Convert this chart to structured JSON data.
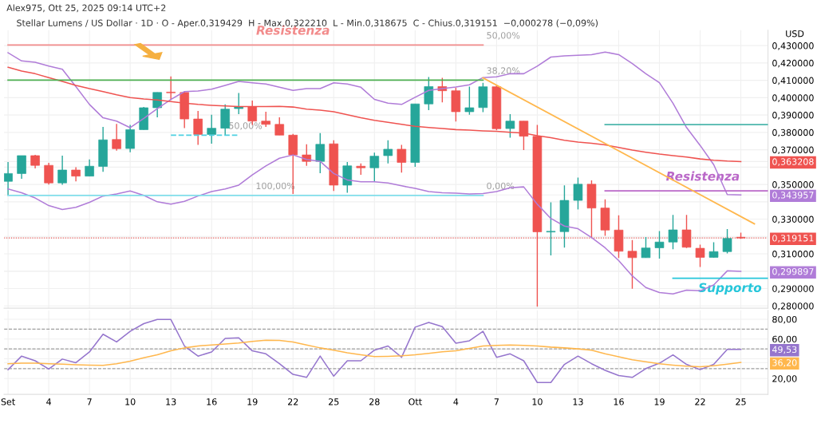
{
  "chart_data": [
    {
      "type": "candlestick",
      "subtitle": "Alex975, Ott 25, 2025 09:14 UTC+2",
      "title": "Stellar Lumens / US Dollar · 1D · O - Aper.0,319429  H - Max.0,322210  L - Min.0,318675  C - Chius.0,319151  −0,000278 (−0,09%)",
      "ylabel": "USD",
      "x": [
        "2025-09-01",
        "2025-09-02",
        "2025-09-03",
        "2025-09-04",
        "2025-09-05",
        "2025-09-06",
        "2025-09-07",
        "2025-09-08",
        "2025-09-09",
        "2025-09-10",
        "2025-09-11",
        "2025-09-12",
        "2025-09-13",
        "2025-09-14",
        "2025-09-15",
        "2025-09-16",
        "2025-09-17",
        "2025-09-18",
        "2025-09-19",
        "2025-09-20",
        "2025-09-21",
        "2025-09-22",
        "2025-09-23",
        "2025-09-24",
        "2025-09-25",
        "2025-09-26",
        "2025-09-27",
        "2025-09-28",
        "2025-09-29",
        "2025-09-30",
        "2025-10-01",
        "2025-10-02",
        "2025-10-03",
        "2025-10-04",
        "2025-10-05",
        "2025-10-06",
        "2025-10-07",
        "2025-10-08",
        "2025-10-09",
        "2025-10-10",
        "2025-10-11",
        "2025-10-12",
        "2025-10-13",
        "2025-10-14",
        "2025-10-15",
        "2025-10-16",
        "2025-10-17",
        "2025-10-18",
        "2025-10-19",
        "2025-10-20",
        "2025-10-21",
        "2025-10-22",
        "2025-10-23",
        "2025-10-24",
        "2025-10-25"
      ],
      "ohlc": [
        [
          0.3518,
          0.3629,
          0.3437,
          0.3563
        ],
        [
          0.3563,
          0.3666,
          0.3533,
          0.3666
        ],
        [
          0.3666,
          0.367,
          0.3592,
          0.361
        ],
        [
          0.361,
          0.3625,
          0.3499,
          0.3509
        ],
        [
          0.3509,
          0.3666,
          0.3498,
          0.3583
        ],
        [
          0.3583,
          0.3599,
          0.3518,
          0.3548
        ],
        [
          0.3548,
          0.3644,
          0.3548,
          0.3605
        ],
        [
          0.3604,
          0.3831,
          0.3573,
          0.3757
        ],
        [
          0.3759,
          0.3849,
          0.3695,
          0.3706
        ],
        [
          0.3707,
          0.3843,
          0.3685,
          0.3816
        ],
        [
          0.3816,
          0.3946,
          0.3816,
          0.3942
        ],
        [
          0.3942,
          0.403,
          0.3887,
          0.403
        ],
        [
          0.4032,
          0.4123,
          0.3987,
          0.4028
        ],
        [
          0.403,
          0.4034,
          0.3825,
          0.3877
        ],
        [
          0.3877,
          0.3924,
          0.3728,
          0.3788
        ],
        [
          0.3788,
          0.3902,
          0.3735,
          0.3824
        ],
        [
          0.3824,
          0.3961,
          0.3784,
          0.3934
        ],
        [
          0.3937,
          0.4027,
          0.3905,
          0.3946
        ],
        [
          0.3946,
          0.3983,
          0.3843,
          0.3865
        ],
        [
          0.3865,
          0.3919,
          0.3831,
          0.3846
        ],
        [
          0.3846,
          0.3887,
          0.3784,
          0.3784
        ],
        [
          0.3784,
          0.3791,
          0.3445,
          0.367
        ],
        [
          0.367,
          0.3732,
          0.3607,
          0.3633
        ],
        [
          0.3633,
          0.3796,
          0.3565,
          0.3731
        ],
        [
          0.3734,
          0.3754,
          0.3462,
          0.3496
        ],
        [
          0.3496,
          0.3629,
          0.3452,
          0.3607
        ],
        [
          0.3605,
          0.3621,
          0.3555,
          0.3596
        ],
        [
          0.3596,
          0.3683,
          0.3515,
          0.3663
        ],
        [
          0.3666,
          0.3754,
          0.3621,
          0.3703
        ],
        [
          0.3703,
          0.3728,
          0.3568,
          0.3627
        ],
        [
          0.3627,
          0.3964,
          0.3602,
          0.3964
        ],
        [
          0.3964,
          0.4119,
          0.3928,
          0.4064
        ],
        [
          0.4064,
          0.4114,
          0.3973,
          0.404
        ],
        [
          0.404,
          0.4057,
          0.3863,
          0.3919
        ],
        [
          0.3919,
          0.4064,
          0.3902,
          0.3942
        ],
        [
          0.3943,
          0.4086,
          0.3917,
          0.4063
        ],
        [
          0.4063,
          0.4074,
          0.3813,
          0.3821
        ],
        [
          0.3822,
          0.3905,
          0.3769,
          0.3865
        ],
        [
          0.3865,
          0.3865,
          0.3698,
          0.3778
        ],
        [
          0.3777,
          0.3843,
          0.2796,
          0.3227
        ],
        [
          0.3226,
          0.3397,
          0.3091,
          0.3228
        ],
        [
          0.3228,
          0.3495,
          0.3136,
          0.3408
        ],
        [
          0.3408,
          0.354,
          0.3356,
          0.3501
        ],
        [
          0.3501,
          0.3523,
          0.3194,
          0.3364
        ],
        [
          0.3364,
          0.3414,
          0.3204,
          0.3237
        ],
        [
          0.3237,
          0.3322,
          0.3076,
          0.3115
        ],
        [
          0.3115,
          0.3179,
          0.2899,
          0.3078
        ],
        [
          0.3078,
          0.3197,
          0.3078,
          0.3134
        ],
        [
          0.3135,
          0.3231,
          0.3073,
          0.3168
        ],
        [
          0.3168,
          0.3324,
          0.3127,
          0.3238
        ],
        [
          0.3238,
          0.3324,
          0.3134,
          0.3138
        ],
        [
          0.3132,
          0.3153,
          0.3024,
          0.308
        ],
        [
          0.308,
          0.3167,
          0.3078,
          0.3113
        ],
        [
          0.3113,
          0.3243,
          0.3102,
          0.3189
        ],
        [
          0.319429,
          0.32221,
          0.318675,
          0.319151
        ]
      ],
      "colors": [
        "#26a69a",
        "#26a69a",
        "#ef5350",
        "#ef5350",
        "#26a69a",
        "#ef5350",
        "#26a69a",
        "#26a69a",
        "#ef5350",
        "#26a69a",
        "#26a69a",
        "#26a69a",
        "#ef5350",
        "#ef5350",
        "#ef5350",
        "#26a69a",
        "#26a69a",
        "#26a69a",
        "#ef5350",
        "#ef5350",
        "#ef5350",
        "#ef5350",
        "#ef5350",
        "#26a69a",
        "#ef5350",
        "#26a69a",
        "#ef5350",
        "#26a69a",
        "#26a69a",
        "#ef5350",
        "#26a69a",
        "#26a69a",
        "#ef5350",
        "#ef5350",
        "#26a69a",
        "#26a69a",
        "#ef5350",
        "#26a69a",
        "#ef5350",
        "#ef5350",
        "#26a69a",
        "#26a69a",
        "#26a69a",
        "#ef5350",
        "#ef5350",
        "#ef5350",
        "#ef5350",
        "#26a69a",
        "#26a69a",
        "#26a69a",
        "#ef5350",
        "#ef5350",
        "#26a69a",
        "#26a69a",
        "#ef5350"
      ],
      "series": [
        {
          "type": "line",
          "color": "#b07cd8",
          "values": [
            0.4259,
            0.4212,
            0.4204,
            0.4182,
            0.4164,
            0.4064,
            0.3961,
            0.3884,
            0.3865,
            0.3827,
            0.388,
            0.3937,
            0.399,
            0.4035,
            0.4039,
            0.4049,
            0.4071,
            0.4094,
            0.4086,
            0.4079,
            0.406,
            0.4042,
            0.4052,
            0.4052,
            0.4086,
            0.4079,
            0.406,
            0.399,
            0.3968,
            0.3961,
            0.4002,
            0.4042,
            0.4052,
            0.4061,
            0.4074,
            0.4116,
            0.412,
            0.4138,
            0.4138,
            0.4182,
            0.4234,
            0.4241,
            0.4244,
            0.4248,
            0.4263,
            0.4248,
            0.4197,
            0.4138,
            0.4086,
            0.3968,
            0.3828,
            0.3725,
            0.3614,
            0.3442,
            0.344
          ]
        },
        {
          "type": "line",
          "color": "#b07cd8",
          "values": [
            0.3474,
            0.3452,
            0.3422,
            0.3378,
            0.3356,
            0.3368,
            0.3397,
            0.3433,
            0.3445,
            0.3462,
            0.3437,
            0.34,
            0.3386,
            0.3403,
            0.3433,
            0.3459,
            0.3474,
            0.3496,
            0.3555,
            0.3607,
            0.3651,
            0.367,
            0.3644,
            0.3633,
            0.3563,
            0.3526,
            0.3515,
            0.3515,
            0.3508,
            0.3492,
            0.3477,
            0.3459,
            0.3452,
            0.345,
            0.3445,
            0.3447,
            0.3459,
            0.3481,
            0.3486,
            0.3386,
            0.3304,
            0.326,
            0.3245,
            0.3194,
            0.3135,
            0.3061,
            0.2973,
            0.2906,
            0.2877,
            0.2869,
            0.2891,
            0.2887,
            0.2921,
            0.3002,
            0.2999
          ]
        },
        {
          "type": "line",
          "color": "#ef5350",
          "values": [
            0.4175,
            0.4153,
            0.4138,
            0.4116,
            0.4094,
            0.4071,
            0.4052,
            0.4035,
            0.4017,
            0.4001,
            0.3993,
            0.3987,
            0.3978,
            0.3968,
            0.3961,
            0.3956,
            0.3952,
            0.3949,
            0.3949,
            0.3949,
            0.395,
            0.3946,
            0.3934,
            0.3928,
            0.3919,
            0.3902,
            0.3884,
            0.3869,
            0.3858,
            0.3846,
            0.3835,
            0.3828,
            0.3822,
            0.3816,
            0.3813,
            0.3809,
            0.3806,
            0.3801,
            0.3796,
            0.3781,
            0.3769,
            0.3754,
            0.3744,
            0.3737,
            0.3728,
            0.3713,
            0.3698,
            0.3686,
            0.3675,
            0.3666,
            0.3658,
            0.3647,
            0.364,
            0.3635,
            0.3632
          ]
        },
        {
          "type": "line",
          "name": "Resistenza",
          "color": "#f28b8b",
          "x": [
            "2025-09-01",
            "2025-10-06"
          ],
          "values": [
            0.4304,
            0.4304
          ]
        },
        {
          "type": "line",
          "color": "#4caf50",
          "x": [
            "2025-09-01",
            "2025-10-06"
          ],
          "values": [
            0.4101,
            0.4101
          ]
        },
        {
          "type": "line",
          "color": "#80deea",
          "x": [
            "2025-09-01",
            "2025-10-06"
          ],
          "values": [
            0.3437,
            0.3437
          ]
        },
        {
          "type": "line",
          "color": "#4dd0e1",
          "line_style": "dashed",
          "x": [
            "2025-09-13",
            "2025-09-18"
          ],
          "values": [
            0.3784,
            0.3784
          ]
        },
        {
          "type": "line",
          "color": "#4db6ac",
          "x": [
            "2025-10-15",
            "2025-10-27"
          ],
          "values": [
            0.3845,
            0.3845
          ]
        },
        {
          "type": "line",
          "name": "Resistenza",
          "color": "#ba68c8",
          "x": [
            "2025-10-15",
            "2025-10-27"
          ],
          "values": [
            0.3463,
            0.3463
          ]
        },
        {
          "type": "line",
          "name": "Supporto",
          "color": "#26c6da",
          "x": [
            "2025-10-20",
            "2025-10-27"
          ],
          "values": [
            0.2959,
            0.2959
          ]
        },
        {
          "type": "line",
          "color": "#ffb74d",
          "x": [
            "2025-10-06",
            "2025-10-26"
          ],
          "values": [
            0.4114,
            0.3273
          ]
        }
      ],
      "ref_lines": [
        {
          "axis": "y",
          "value": 0.319151,
          "color": "#ef5350",
          "line_style": "dotted"
        }
      ],
      "annotations": [
        {
          "text": "50,00%",
          "x": "2025-10-06",
          "y": 0.4304
        },
        {
          "text": "38,20%",
          "x": "2025-10-06",
          "y": 0.4101
        },
        {
          "text": "50,00%",
          "x": "2025-09-17",
          "y": 0.3784
        },
        {
          "text": "100,00%",
          "x": "2025-09-19",
          "y": 0.3437
        },
        {
          "text": "0,00%",
          "x": "2025-10-06",
          "y": 0.3437
        }
      ],
      "xlim": [
        "2025-08-31T17:00",
        "2025-10-27"
      ],
      "xticks": [
        {
          "value": "2025-09-01",
          "label": null
        },
        {
          "value": "2025-09-04",
          "label": null
        },
        {
          "value": "2025-09-07",
          "label": null
        },
        {
          "value": "2025-09-10",
          "label": null
        },
        {
          "value": "2025-09-13",
          "label": null
        },
        {
          "value": "2025-09-16",
          "label": null
        },
        {
          "value": "2025-09-19",
          "label": null
        },
        {
          "value": "2025-09-22",
          "label": null
        },
        {
          "value": "2025-09-25",
          "label": null
        },
        {
          "value": "2025-09-28",
          "label": null
        },
        {
          "value": "2025-10-01",
          "label": null
        },
        {
          "value": "2025-10-04",
          "label": null
        },
        {
          "value": "2025-10-07",
          "label": null
        },
        {
          "value": "2025-10-10",
          "label": null
        },
        {
          "value": "2025-10-13",
          "label": null
        },
        {
          "value": "2025-10-16",
          "label": null
        },
        {
          "value": "2025-10-19",
          "label": null
        },
        {
          "value": "2025-10-22",
          "label": null
        },
        {
          "value": "2025-10-25",
          "label": null
        }
      ],
      "ylim": [
        0.2787,
        0.4389
      ],
      "yticks": [
        {
          "value": 0.28,
          "label": "0,280000"
        },
        {
          "value": 0.29,
          "label": "0,290000"
        },
        {
          "value": 0.3,
          "label": null
        },
        {
          "value": 0.31,
          "label": "0,310000"
        },
        {
          "value": 0.32,
          "label": null
        },
        {
          "value": 0.33,
          "label": "0,330000"
        },
        {
          "value": 0.34,
          "label": null
        },
        {
          "value": 0.35,
          "label": "0,350000"
        },
        {
          "value": 0.36,
          "label": null
        },
        {
          "value": 0.37,
          "label": "0,370000"
        },
        {
          "value": 0.38,
          "label": "0,380000"
        },
        {
          "value": 0.39,
          "label": "0,390000"
        },
        {
          "value": 0.4,
          "label": "0,400000"
        },
        {
          "value": 0.41,
          "label": "0,410000"
        },
        {
          "value": 0.42,
          "label": "0,420000"
        },
        {
          "value": 0.43,
          "label": "0,430000"
        },
        {
          "value": 0.363208,
          "label": "0,363208"
        },
        {
          "value": 0.343957,
          "label": "0,343957"
        },
        {
          "value": 0.319151,
          "label": "0,319151"
        },
        {
          "value": 0.299897,
          "label": "0,299897"
        }
      ],
      "tick_labels": "y",
      "grid": true
    },
    {
      "type": "line",
      "x": [
        "2025-09-01",
        "2025-09-02",
        "2025-09-03",
        "2025-09-04",
        "2025-09-05",
        "2025-09-06",
        "2025-09-07",
        "2025-09-08",
        "2025-09-09",
        "2025-09-10",
        "2025-09-11",
        "2025-09-12",
        "2025-09-13",
        "2025-09-14",
        "2025-09-15",
        "2025-09-16",
        "2025-09-17",
        "2025-09-18",
        "2025-09-19",
        "2025-09-20",
        "2025-09-21",
        "2025-09-22",
        "2025-09-23",
        "2025-09-24",
        "2025-09-25",
        "2025-09-26",
        "2025-09-27",
        "2025-09-28",
        "2025-09-29",
        "2025-09-30",
        "2025-10-01",
        "2025-10-02",
        "2025-10-03",
        "2025-10-04",
        "2025-10-05",
        "2025-10-06",
        "2025-10-07",
        "2025-10-08",
        "2025-10-09",
        "2025-10-10",
        "2025-10-11",
        "2025-10-12",
        "2025-10-13",
        "2025-10-14",
        "2025-10-15",
        "2025-10-16",
        "2025-10-17",
        "2025-10-18",
        "2025-10-19",
        "2025-10-20",
        "2025-10-21",
        "2025-10-22",
        "2025-10-23",
        "2025-10-24",
        "2025-10-25"
      ],
      "series": [
        {
          "color": "#9575cd",
          "values": [
            29,
            42.7,
            38,
            29.6,
            39.7,
            36,
            46.9,
            64.8,
            57,
            67.8,
            75.5,
            79.7,
            79.7,
            52.9,
            42.7,
            46.9,
            60.6,
            61.2,
            48,
            45,
            35,
            24.2,
            21.2,
            42.7,
            22.4,
            38,
            38,
            48.7,
            52.9,
            41.5,
            72,
            76.7,
            72.5,
            55.8,
            58.2,
            67.8,
            41.5,
            45,
            38,
            16,
            16,
            34.3,
            42.7,
            35,
            28.3,
            23,
            21.2,
            30.1,
            35.5,
            43.9,
            34.3,
            29,
            34.3,
            49.5,
            49.53
          ]
        },
        {
          "color": "#ffb74d",
          "values": [
            35,
            35.5,
            35.5,
            35,
            34.5,
            34,
            33.5,
            33.3,
            35,
            37.5,
            41,
            44,
            48,
            51,
            53,
            54,
            55,
            56,
            57.5,
            58.8,
            58.5,
            57,
            54,
            51,
            48.7,
            46,
            44,
            42.3,
            42.5,
            43,
            44,
            45.5,
            47,
            48,
            50.5,
            53,
            53.5,
            54,
            53.5,
            53,
            51.8,
            51,
            50,
            48.7,
            45,
            42,
            39,
            37,
            35,
            33.6,
            32.5,
            32,
            33,
            34.5,
            36.2
          ]
        }
      ],
      "ref_lines": [
        {
          "axis": "y",
          "value": 70,
          "color": "#9e9e9e",
          "line_style": "dashed"
        },
        {
          "axis": "y",
          "value": 50,
          "color": "#9e9e9e",
          "line_style": "dashed"
        },
        {
          "axis": "y",
          "value": 30,
          "color": "#9e9e9e",
          "line_style": "dashed"
        }
      ],
      "xlim": [
        "2025-08-31T17:00",
        "2025-10-27"
      ],
      "xticks": [
        {
          "value": "2025-09-01",
          "label": "Set"
        },
        {
          "value": "2025-09-04",
          "label": "4"
        },
        {
          "value": "2025-09-07",
          "label": "7"
        },
        {
          "value": "2025-09-10",
          "label": "10"
        },
        {
          "value": "2025-09-13",
          "label": "13"
        },
        {
          "value": "2025-09-16",
          "label": "16"
        },
        {
          "value": "2025-09-19",
          "label": "19"
        },
        {
          "value": "2025-09-22",
          "label": "22"
        },
        {
          "value": "2025-09-25",
          "label": "25"
        },
        {
          "value": "2025-09-28",
          "label": "28"
        },
        {
          "value": "2025-10-01",
          "label": "Ott"
        },
        {
          "value": "2025-10-04",
          "label": "4"
        },
        {
          "value": "2025-10-07",
          "label": "7"
        },
        {
          "value": "2025-10-10",
          "label": "10"
        },
        {
          "value": "2025-10-13",
          "label": "13"
        },
        {
          "value": "2025-10-16",
          "label": "16"
        },
        {
          "value": "2025-10-19",
          "label": "19"
        },
        {
          "value": "2025-10-22",
          "label": "22"
        },
        {
          "value": "2025-10-25",
          "label": "25"
        }
      ],
      "ylim": [
        4,
        89
      ],
      "yticks": [
        {
          "value": 20,
          "label": "20,00"
        },
        {
          "value": 40,
          "label": null
        },
        {
          "value": 60,
          "label": "60,00"
        },
        {
          "value": 80,
          "label": "80,00"
        },
        {
          "value": 49.53,
          "label": "49,53"
        },
        {
          "value": 36.2,
          "label": "36,20"
        }
      ],
      "grid": true
    }
  ]
}
